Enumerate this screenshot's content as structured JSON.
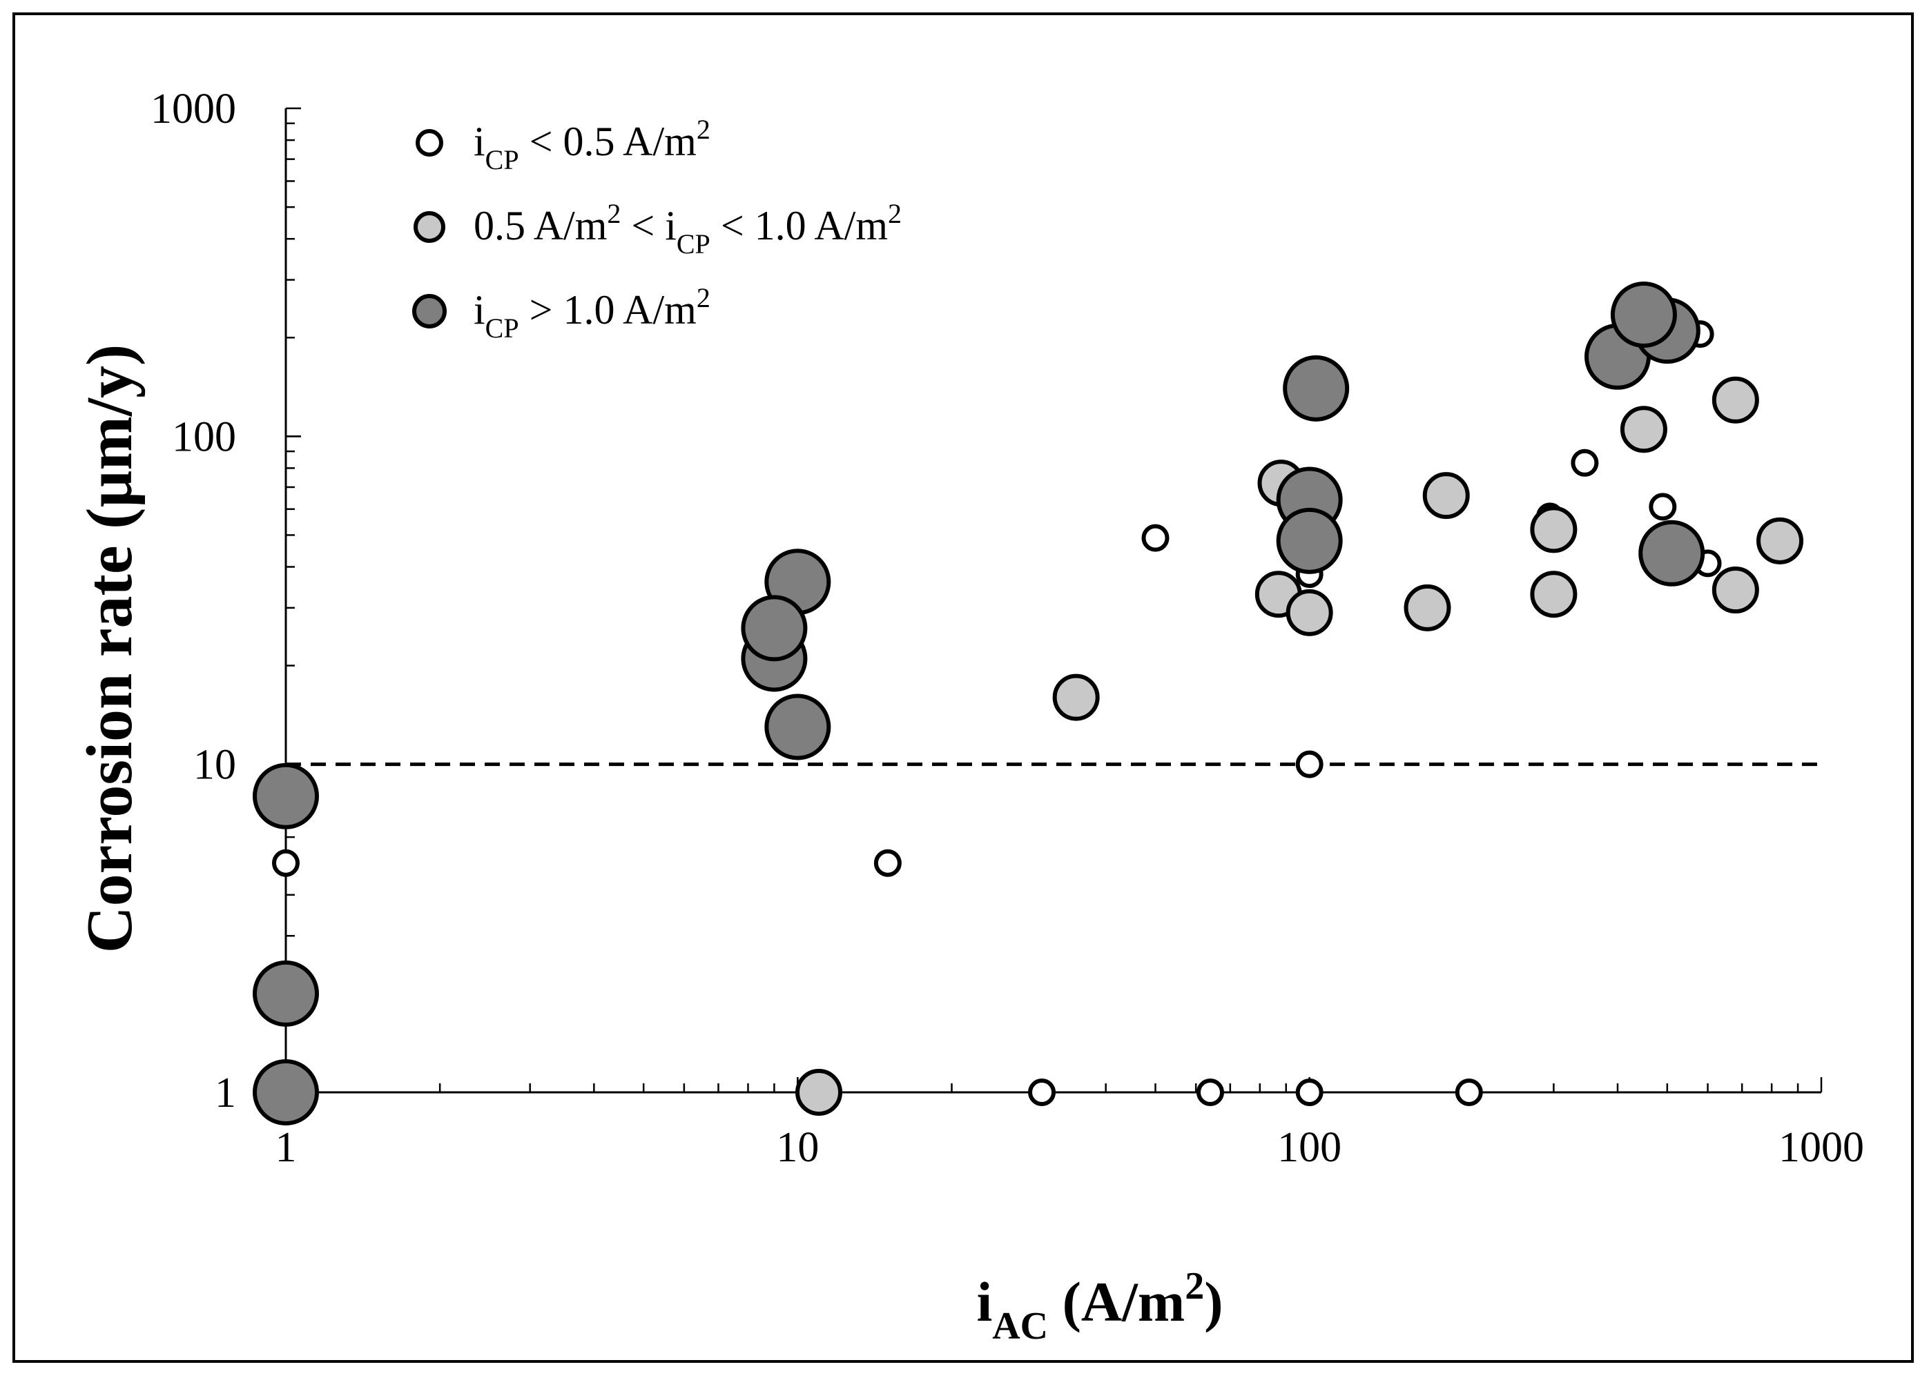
{
  "chart_data": {
    "type": "scatter",
    "title": "",
    "xlabel": {
      "main": "i",
      "sub": "AC",
      "rest": " (A/m",
      "sup": "2",
      "close": ")"
    },
    "ylabel": "Corrosion rate (µm/y)",
    "x_scale": "log",
    "y_scale": "log",
    "xlim": [
      1,
      1000
    ],
    "ylim": [
      1,
      1000
    ],
    "x_tick_labels": [
      "1",
      "10",
      "100",
      "1000"
    ],
    "y_tick_labels": [
      "1",
      "10",
      "100",
      "1000"
    ],
    "grid": false,
    "threshold_line": {
      "y": 10,
      "style": "dashed"
    },
    "legend_position": "top-left",
    "legend": [
      {
        "parts": [
          {
            "t": "i"
          },
          {
            "t": "CP",
            "s": "sub"
          },
          {
            "t": " < 0.5 A/m"
          },
          {
            "t": "2",
            "s": "sup"
          }
        ]
      },
      {
        "parts": [
          {
            "t": "0.5 A/m"
          },
          {
            "t": "2",
            "s": "sup"
          },
          {
            "t": " < i"
          },
          {
            "t": "CP",
            "s": "sub"
          },
          {
            "t": " < 1.0 A/m"
          },
          {
            "t": "2",
            "s": "sup"
          }
        ]
      },
      {
        "parts": [
          {
            "t": "i"
          },
          {
            "t": "CP",
            "s": "sub"
          },
          {
            "t": " > 1.0 A/m"
          },
          {
            "t": "2",
            "s": "sup"
          }
        ]
      }
    ],
    "series": [
      {
        "color": "#ffffff",
        "marker_size": "small",
        "points": [
          [
            1,
            5
          ],
          [
            15,
            5
          ],
          [
            30,
            1
          ],
          [
            64,
            1
          ],
          [
            100,
            1
          ],
          [
            205,
            1
          ],
          [
            100,
            10
          ],
          [
            50,
            49
          ],
          [
            100,
            38
          ],
          [
            100,
            60
          ],
          [
            295,
            57
          ],
          [
            345,
            83
          ],
          [
            490,
            61
          ],
          [
            580,
            205
          ],
          [
            600,
            41
          ]
        ]
      },
      {
        "color": "#c8c8c8",
        "marker_size": "medium",
        "points": [
          [
            11,
            1
          ],
          [
            35,
            16
          ],
          [
            88,
            72
          ],
          [
            87,
            33
          ],
          [
            100,
            29
          ],
          [
            170,
            30
          ],
          [
            185,
            66
          ],
          [
            300,
            52
          ],
          [
            300,
            33
          ],
          [
            450,
            105
          ],
          [
            680,
            129
          ],
          [
            680,
            34
          ],
          [
            830,
            48
          ]
        ]
      },
      {
        "color": "#7f7f7f",
        "marker_size": "large",
        "points": [
          [
            1,
            8
          ],
          [
            1,
            2
          ],
          [
            1,
            1
          ],
          [
            10,
            36
          ],
          [
            9,
            21
          ],
          [
            9,
            26
          ],
          [
            10,
            13
          ],
          [
            103,
            140
          ],
          [
            100,
            64
          ],
          [
            100,
            48
          ],
          [
            400,
            175
          ],
          [
            500,
            210
          ],
          [
            450,
            235
          ],
          [
            510,
            44
          ]
        ]
      }
    ]
  }
}
